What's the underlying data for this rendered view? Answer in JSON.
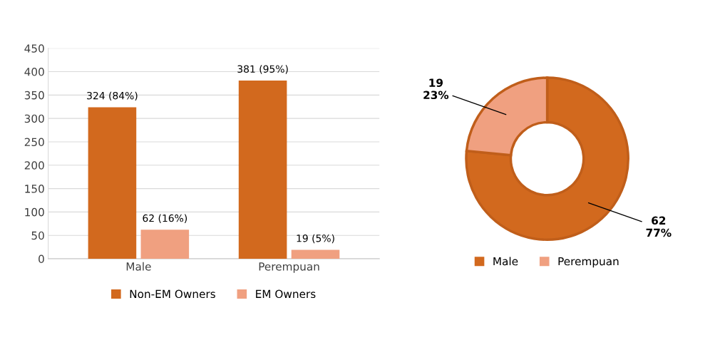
{
  "chart_data": [
    {
      "type": "bar",
      "categories": [
        "Male",
        "Perempuan"
      ],
      "series": [
        {
          "name": "Non-EM Owners",
          "color": "#d2691e",
          "values": [
            324,
            381
          ],
          "value_labels": [
            "324 (84%)",
            "381 (95%)"
          ]
        },
        {
          "name": "EM Owners",
          "color": "#f0a080",
          "values": [
            62,
            19
          ],
          "value_labels": [
            "62 (16%)",
            "19 (5%)"
          ]
        }
      ],
      "ylim": [
        0,
        450
      ],
      "yticks": [
        0,
        50,
        100,
        150,
        200,
        250,
        300,
        350,
        400,
        450
      ],
      "grid": "y",
      "legend": "bottom"
    },
    {
      "type": "donut",
      "categories": [
        "Male",
        "Perempuan"
      ],
      "values": [
        62,
        19
      ],
      "colors": [
        "#d2691e",
        "#f0a080"
      ],
      "value_labels": [
        "62\n77%",
        "19\n23%"
      ],
      "legend": "bottom"
    }
  ]
}
